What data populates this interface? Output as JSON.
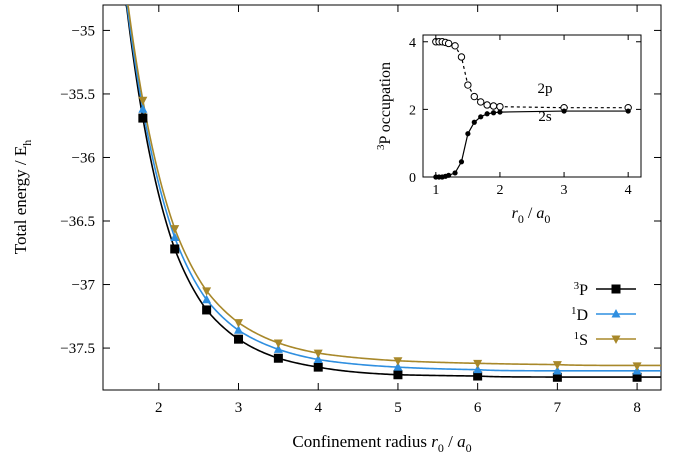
{
  "chart_data": [
    {
      "type": "line",
      "title": "",
      "xlabel": "Confinement radius r0 / a0",
      "ylabel": "Total energy / Eh",
      "xlim": [
        1.3,
        8.3
      ],
      "ylim": [
        -37.83,
        -34.8
      ],
      "xticks": [
        2,
        3,
        4,
        5,
        6,
        7,
        8
      ],
      "yticks": [
        -35,
        -35.5,
        -36,
        -36.5,
        -37,
        -37.5
      ],
      "ytick_labels": [
        "−35",
        "−35.5",
        "−36",
        "−36.5",
        "−37",
        "−37.5"
      ],
      "legend_position": "right",
      "series": [
        {
          "name": "3P",
          "color": "#000000",
          "marker": "square",
          "x": [
            1.8,
            2.2,
            2.6,
            3.0,
            3.5,
            4.0,
            5.0,
            6.0,
            7.0,
            8.0
          ],
          "y": [
            -35.69,
            -36.72,
            -37.2,
            -37.43,
            -37.58,
            -37.65,
            -37.71,
            -37.72,
            -37.73,
            -37.73
          ],
          "asymptote": -37.728
        },
        {
          "name": "1D",
          "color": "#2f8fe0",
          "marker": "triangle-up",
          "x": [
            1.8,
            2.2,
            2.6,
            3.0,
            3.5,
            4.0,
            5.0,
            6.0,
            7.0,
            8.0
          ],
          "y": [
            -35.62,
            -36.63,
            -37.12,
            -37.36,
            -37.51,
            -37.59,
            -37.65,
            -37.67,
            -37.68,
            -37.68
          ],
          "asymptote": -37.679
        },
        {
          "name": "1S",
          "color": "#a8882a",
          "marker": "triangle-down",
          "x": [
            1.8,
            2.2,
            2.6,
            3.0,
            3.5,
            4.0,
            5.0,
            6.0,
            7.0,
            8.0
          ],
          "y": [
            -35.55,
            -36.56,
            -37.05,
            -37.3,
            -37.46,
            -37.54,
            -37.6,
            -37.62,
            -37.63,
            -37.64
          ],
          "asymptote": -37.637
        }
      ]
    },
    {
      "type": "line",
      "title": "",
      "xlabel": "r0 / a0",
      "ylabel": "3P occupation",
      "xlim": [
        0.8,
        4.2
      ],
      "ylim": [
        0,
        4.2
      ],
      "xticks": [
        1,
        2,
        3,
        4
      ],
      "yticks": [
        0,
        2,
        4
      ],
      "series": [
        {
          "name": "2p",
          "marker": "open-circle",
          "line": "dashed",
          "x": [
            1.0,
            1.05,
            1.1,
            1.15,
            1.2,
            1.3,
            1.4,
            1.5,
            1.6,
            1.7,
            1.8,
            1.9,
            2.0,
            3.0,
            4.0
          ],
          "y": [
            4.0,
            4.0,
            4.0,
            3.98,
            3.95,
            3.88,
            3.55,
            2.72,
            2.38,
            2.22,
            2.13,
            2.1,
            2.08,
            2.05,
            2.05
          ]
        },
        {
          "name": "2s",
          "marker": "filled-circle",
          "line": "solid",
          "x": [
            1.0,
            1.05,
            1.1,
            1.15,
            1.2,
            1.3,
            1.4,
            1.5,
            1.6,
            1.7,
            1.8,
            1.9,
            2.0,
            3.0,
            4.0
          ],
          "y": [
            0.0,
            0.0,
            0.0,
            0.02,
            0.05,
            0.12,
            0.45,
            1.28,
            1.62,
            1.78,
            1.87,
            1.9,
            1.92,
            1.95,
            1.95
          ]
        }
      ]
    }
  ],
  "labels": {
    "ylabel_main": "Total energy / E",
    "ylabel_sub": "h",
    "xlabel_main": "Confinement radius ",
    "xlabel_r": "r",
    "xlabel_r_sub": "0",
    "xlabel_slash": " / ",
    "xlabel_a": "a",
    "xlabel_a_sub": "0",
    "inset_ylabel_sup": "3",
    "inset_ylabel_main": "P occupation",
    "inset_xlabel_r": "r",
    "inset_xlabel_r_sub": "0",
    "inset_xlabel_slash": " / ",
    "inset_xlabel_a": "a",
    "inset_xlabel_a_sub": "0",
    "ann_2p": "2p",
    "ann_2s": "2s",
    "legend": [
      {
        "sup": "3",
        "letter": "P"
      },
      {
        "sup": "1",
        "letter": "D"
      },
      {
        "sup": "1",
        "letter": "S"
      }
    ]
  }
}
